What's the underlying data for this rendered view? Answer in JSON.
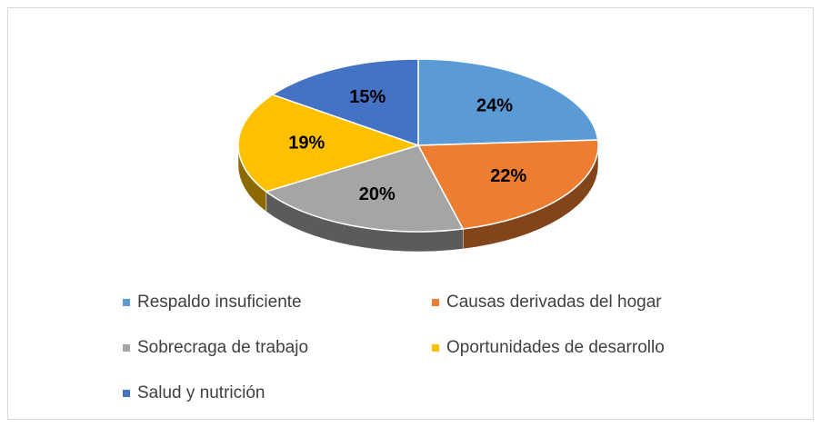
{
  "chart_data": {
    "type": "pie",
    "categories": [
      "Respaldo insuficiente",
      "Causas derivadas del hogar",
      "Sobrecraga de trabajo",
      "Oportunidades de desarrollo",
      "Salud y nutrición"
    ],
    "values": [
      24,
      22,
      20,
      19,
      15
    ],
    "value_labels": [
      "24%",
      "22%",
      "20%",
      "19%",
      "15%"
    ],
    "colors": [
      "#5b9bd5",
      "#ed7d31",
      "#a5a5a5",
      "#ffc000",
      "#4472c4"
    ],
    "legend": "bottom"
  }
}
